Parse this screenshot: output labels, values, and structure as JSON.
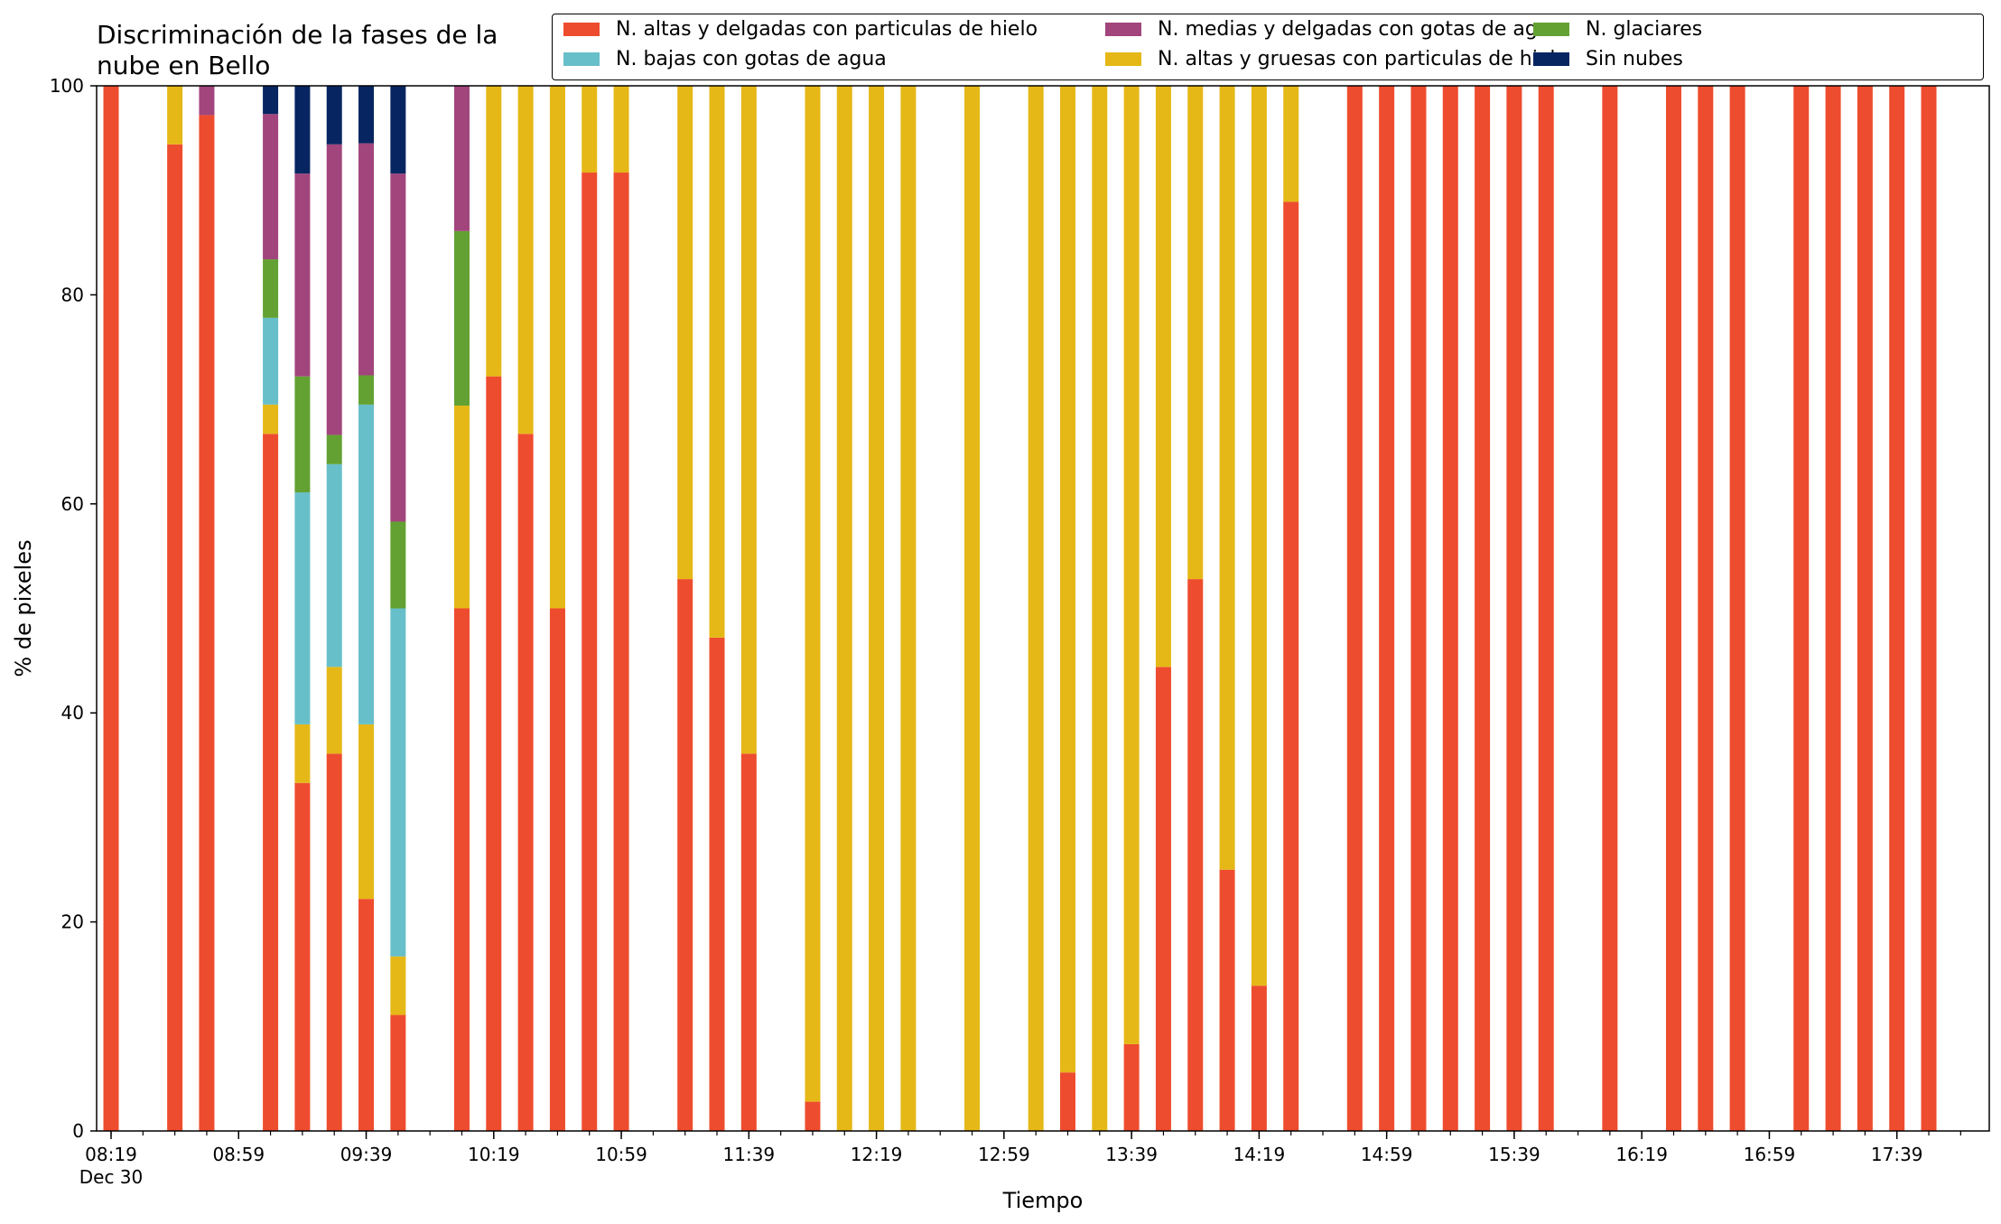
{
  "chart_data": {
    "type": "bar",
    "stacked": true,
    "title_lines": [
      "Discriminación de la fases de la",
      "nube en Bello"
    ],
    "xlabel": "Tiempo",
    "ylabel": "% de pixeles",
    "ylim": [
      0,
      100
    ],
    "yticks": [
      0,
      20,
      40,
      60,
      80,
      100
    ],
    "xticks": [
      "08:19",
      "08:59",
      "09:39",
      "10:19",
      "10:59",
      "11:39",
      "12:19",
      "12:59",
      "13:39",
      "14:19",
      "14:59",
      "15:39",
      "16:19",
      "16:59",
      "17:39"
    ],
    "xtick_sub": "Dec 30",
    "x_start": "08:19",
    "x_end": "18:04",
    "grid": false,
    "legend_position": "top-right",
    "series": [
      {
        "name": "N. altas y delgadas con particulas de hielo",
        "color": "#EE4C2E"
      },
      {
        "name": "N. altas y gruesas con particulas de hielo",
        "color": "#E5B817"
      },
      {
        "name": "N. bajas con gotas de agua",
        "color": "#67BFC9"
      },
      {
        "name": "N. glaciares",
        "color": "#63A133"
      },
      {
        "name": "N. medias y delgadas con gotas de agua",
        "color": "#A2457C"
      },
      {
        "name": "Sin nubes",
        "color": "#072561"
      }
    ],
    "legend_order": [
      0,
      2,
      4,
      1,
      3,
      5
    ],
    "bars": [
      {
        "time": "08:19",
        "values": [
          100,
          0,
          0,
          0,
          0,
          0
        ]
      },
      {
        "time": "08:39",
        "values": [
          94.4,
          5.6,
          0,
          0,
          0,
          0
        ]
      },
      {
        "time": "08:49",
        "values": [
          97.2,
          0,
          0,
          0,
          2.8,
          0
        ]
      },
      {
        "time": "09:09",
        "values": [
          66.7,
          2.8,
          8.3,
          5.6,
          13.9,
          2.7
        ]
      },
      {
        "time": "09:19",
        "values": [
          33.3,
          5.6,
          22.2,
          11.1,
          19.4,
          8.4
        ]
      },
      {
        "time": "09:29",
        "values": [
          36.1,
          8.3,
          19.4,
          2.8,
          27.8,
          5.6
        ]
      },
      {
        "time": "09:39",
        "values": [
          22.2,
          16.7,
          30.6,
          2.8,
          22.2,
          5.5
        ]
      },
      {
        "time": "09:49",
        "values": [
          11.1,
          5.6,
          33.3,
          8.3,
          33.3,
          8.4
        ]
      },
      {
        "time": "10:09",
        "values": [
          50,
          19.4,
          0,
          16.7,
          13.9,
          0
        ]
      },
      {
        "time": "10:19",
        "values": [
          72.2,
          27.8,
          0,
          0,
          0,
          0
        ]
      },
      {
        "time": "10:29",
        "values": [
          66.7,
          33.3,
          0,
          0,
          0,
          0
        ]
      },
      {
        "time": "10:39",
        "values": [
          50,
          50,
          0,
          0,
          0,
          0
        ]
      },
      {
        "time": "10:49",
        "values": [
          91.7,
          8.3,
          0,
          0,
          0,
          0
        ]
      },
      {
        "time": "10:59",
        "values": [
          91.7,
          8.3,
          0,
          0,
          0,
          0
        ]
      },
      {
        "time": "11:19",
        "values": [
          52.8,
          47.2,
          0,
          0,
          0,
          0
        ]
      },
      {
        "time": "11:29",
        "values": [
          47.2,
          52.8,
          0,
          0,
          0,
          0
        ]
      },
      {
        "time": "11:39",
        "values": [
          36.1,
          63.9,
          0,
          0,
          0,
          0
        ]
      },
      {
        "time": "11:59",
        "values": [
          2.8,
          97.2,
          0,
          0,
          0,
          0
        ]
      },
      {
        "time": "12:09",
        "values": [
          0,
          100,
          0,
          0,
          0,
          0
        ]
      },
      {
        "time": "12:19",
        "values": [
          0,
          100,
          0,
          0,
          0,
          0
        ]
      },
      {
        "time": "12:29",
        "values": [
          0,
          100,
          0,
          0,
          0,
          0
        ]
      },
      {
        "time": "12:49",
        "values": [
          0,
          100,
          0,
          0,
          0,
          0
        ]
      },
      {
        "time": "13:09",
        "values": [
          0,
          100,
          0,
          0,
          0,
          0
        ]
      },
      {
        "time": "13:19",
        "values": [
          5.6,
          94.4,
          0,
          0,
          0,
          0
        ]
      },
      {
        "time": "13:29",
        "values": [
          0,
          100,
          0,
          0,
          0,
          0
        ]
      },
      {
        "time": "13:39",
        "values": [
          8.3,
          91.7,
          0,
          0,
          0,
          0
        ]
      },
      {
        "time": "13:49",
        "values": [
          44.4,
          55.6,
          0,
          0,
          0,
          0
        ]
      },
      {
        "time": "13:59",
        "values": [
          52.8,
          47.2,
          0,
          0,
          0,
          0
        ]
      },
      {
        "time": "14:09",
        "values": [
          25,
          75,
          0,
          0,
          0,
          0
        ]
      },
      {
        "time": "14:19",
        "values": [
          13.9,
          86.1,
          0,
          0,
          0,
          0
        ]
      },
      {
        "time": "14:29",
        "values": [
          88.9,
          11.1,
          0,
          0,
          0,
          0
        ]
      },
      {
        "time": "14:49",
        "values": [
          100,
          0,
          0,
          0,
          0,
          0
        ]
      },
      {
        "time": "14:59",
        "values": [
          100,
          0,
          0,
          0,
          0,
          0
        ]
      },
      {
        "time": "15:09",
        "values": [
          100,
          0,
          0,
          0,
          0,
          0
        ]
      },
      {
        "time": "15:19",
        "values": [
          100,
          0,
          0,
          0,
          0,
          0
        ]
      },
      {
        "time": "15:29",
        "values": [
          100,
          0,
          0,
          0,
          0,
          0
        ]
      },
      {
        "time": "15:39",
        "values": [
          100,
          0,
          0,
          0,
          0,
          0
        ]
      },
      {
        "time": "15:49",
        "values": [
          100,
          0,
          0,
          0,
          0,
          0
        ]
      },
      {
        "time": "16:09",
        "values": [
          100,
          0,
          0,
          0,
          0,
          0
        ]
      },
      {
        "time": "16:29",
        "values": [
          100,
          0,
          0,
          0,
          0,
          0
        ]
      },
      {
        "time": "16:39",
        "values": [
          100,
          0,
          0,
          0,
          0,
          0
        ]
      },
      {
        "time": "16:49",
        "values": [
          100,
          0,
          0,
          0,
          0,
          0
        ]
      },
      {
        "time": "17:09",
        "values": [
          100,
          0,
          0,
          0,
          0,
          0
        ]
      },
      {
        "time": "17:19",
        "values": [
          100,
          0,
          0,
          0,
          0,
          0
        ]
      },
      {
        "time": "17:29",
        "values": [
          100,
          0,
          0,
          0,
          0,
          0
        ]
      },
      {
        "time": "17:39",
        "values": [
          100,
          0,
          0,
          0,
          0,
          0
        ]
      },
      {
        "time": "17:49",
        "values": [
          100,
          0,
          0,
          0,
          0,
          0
        ]
      }
    ]
  }
}
